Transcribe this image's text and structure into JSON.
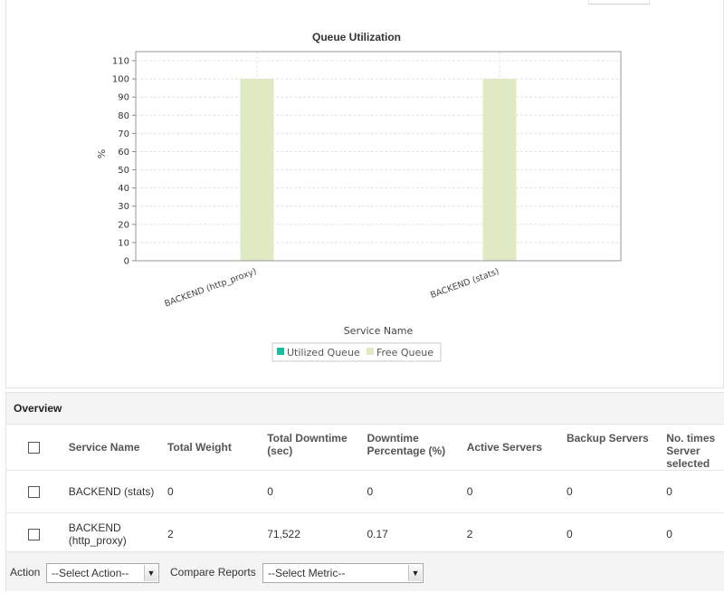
{
  "chart_data": {
    "type": "bar",
    "title": "Queue Utilization",
    "xlabel": "Service Name",
    "ylabel": "%",
    "categories": [
      "BACKEND (http_proxy)",
      "BACKEND (stats)"
    ],
    "series": [
      {
        "name": "Utilized Queue",
        "color": "#1abc9c",
        "values": [
          0,
          0
        ]
      },
      {
        "name": "Free Queue",
        "color": "#dfeac3",
        "values": [
          100,
          100
        ]
      }
    ],
    "yticks": [
      "0",
      "10",
      "20",
      "30",
      "40",
      "50",
      "60",
      "70",
      "80",
      "90",
      "100",
      "110"
    ],
    "ylim": [
      0,
      115
    ],
    "grid": true,
    "legend": "bottom-center"
  },
  "overview": {
    "title": "Overview",
    "columns": [
      "Service Name",
      "Total Weight",
      "Total Downtime (sec)",
      "Downtime Percentage (%)",
      "Active Servers",
      "Backup Servers",
      "No. times Server selected"
    ],
    "rows": [
      {
        "service": "BACKEND (stats)",
        "weight": "0",
        "downtime": "0",
        "downtime_pct": "0",
        "active": "0",
        "backup": "0",
        "selected": "0"
      },
      {
        "service": "BACKEND (http_proxy)",
        "weight": "2",
        "downtime": "71,522",
        "downtime_pct": "0.17",
        "active": "2",
        "backup": "0",
        "selected": "0"
      }
    ]
  },
  "footer": {
    "action_label": "Action",
    "action_select": "--Select Action--",
    "compare_label": "Compare Reports",
    "metric_select": "--Select Metric--"
  }
}
